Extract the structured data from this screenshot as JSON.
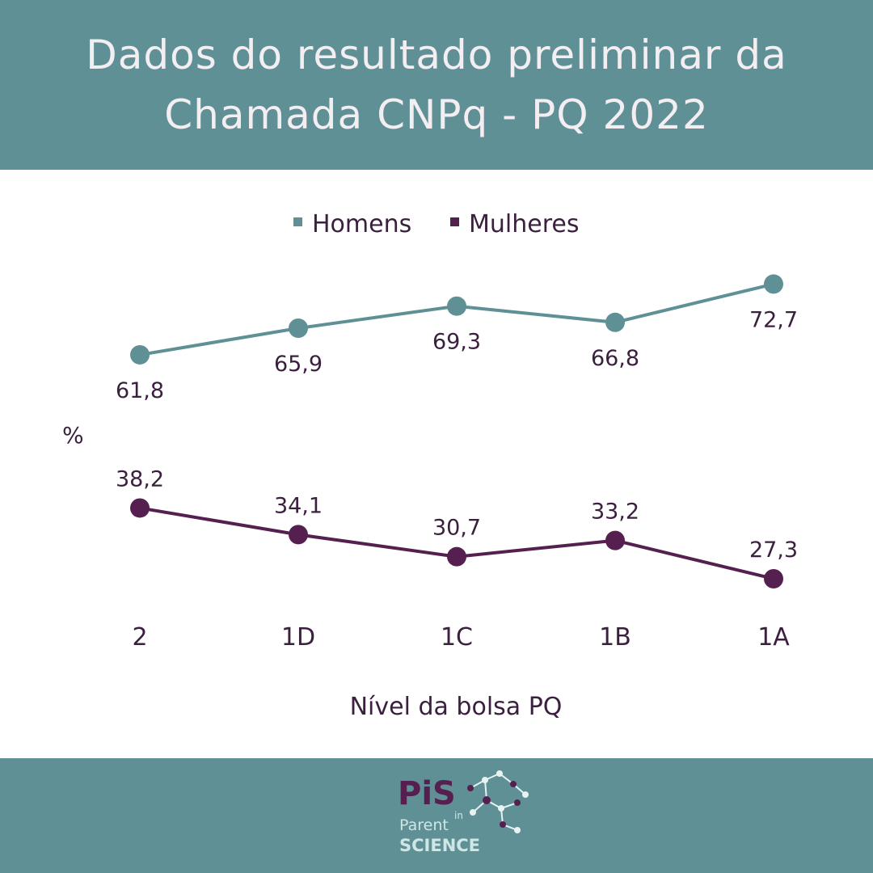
{
  "header": {
    "title_line1": "Dados do resultado preliminar da",
    "title_line2": "Chamada CNPq - PQ 2022"
  },
  "colors": {
    "header_bg": "#5f9095",
    "homens": "#5f9095",
    "mulheres": "#55204f",
    "text": "#3b1f3e"
  },
  "chart_data": {
    "type": "line",
    "title": "Dados do resultado preliminar da Chamada CNPq - PQ 2022",
    "xlabel": "Nível da bolsa PQ",
    "ylabel": "%",
    "categories": [
      "2",
      "1D",
      "1C",
      "1B",
      "1A"
    ],
    "series": [
      {
        "name": "Homens",
        "values": [
          61.8,
          65.9,
          69.3,
          66.8,
          72.7
        ],
        "labels": [
          "61,8",
          "65,9",
          "69,3",
          "66,8",
          "72,7"
        ],
        "color": "#5f9095"
      },
      {
        "name": "Mulheres",
        "values": [
          38.2,
          34.1,
          30.7,
          33.2,
          27.3
        ],
        "labels": [
          "38,2",
          "34,1",
          "30,7",
          "33,2",
          "27,3"
        ],
        "color": "#55204f"
      }
    ],
    "legend": "top-center",
    "grid": false
  },
  "logo": {
    "brand": "PiS",
    "word1": "Parent",
    "word2": "in",
    "word3": "SCIENCE"
  }
}
